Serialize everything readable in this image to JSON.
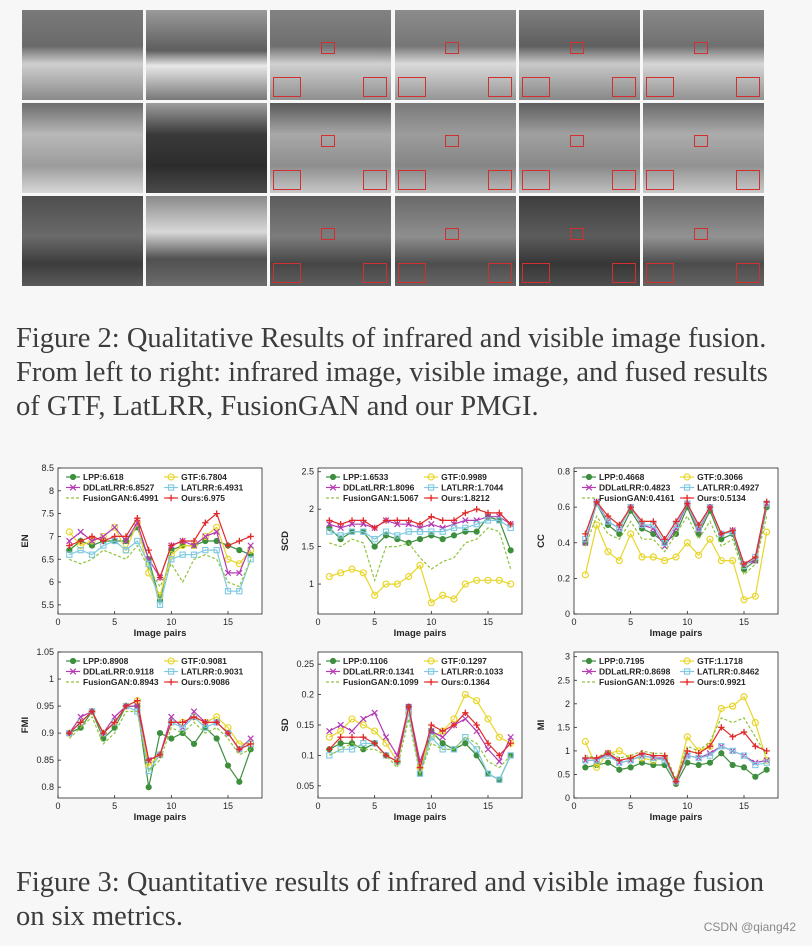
{
  "figure2": {
    "caption": "Figure 2: Qualitative Results of infrared and visible image fusion. From left to right: infrared image, visible image, and fused results of GTF, LatLRR, FusionGAN and our PMGI.",
    "rows": 3,
    "cols": 6
  },
  "figure3": {
    "caption": "Figure 3: Quantitative results of infrared and visible image fusion on six metrics."
  },
  "watermark": "CSDN @qiang42",
  "colors": {
    "LPP": "#3d8f3d",
    "GTF": "#e8d62a",
    "DDLatLRR": "#b43ab4",
    "LATLRR": "#7ec9e0",
    "FusionGAN": "#8fc43a",
    "Ours": "#e02a2a"
  },
  "chart_data": [
    {
      "type": "line",
      "ylabel": "EN",
      "xlabel": "Image pairs",
      "ylim": [
        5.3,
        8.5
      ],
      "yticks": [
        "5.5",
        "6",
        "6.5",
        "7",
        "7.5",
        "8",
        "8.5"
      ],
      "xticks": [
        "0",
        "5",
        "10",
        "15"
      ],
      "x": [
        1,
        2,
        3,
        4,
        5,
        6,
        7,
        8,
        9,
        10,
        11,
        12,
        13,
        14,
        15,
        16,
        17
      ],
      "legend": [
        "LPP:6.618",
        "GTF:6.7804",
        "DDLatLRR:6.8527",
        "LATLRR:6.4931",
        "FusionGAN:6.4991",
        "Ours:6.975"
      ],
      "series": [
        {
          "name": "LPP",
          "values": [
            6.7,
            6.9,
            6.8,
            6.9,
            6.9,
            6.9,
            7.2,
            6.5,
            5.6,
            6.7,
            6.8,
            6.8,
            6.9,
            6.9,
            6.8,
            6.7,
            6.6
          ]
        },
        {
          "name": "GTF",
          "values": [
            7.1,
            6.8,
            6.9,
            7.0,
            7.2,
            6.7,
            7.3,
            6.2,
            5.7,
            6.6,
            6.8,
            6.8,
            7.0,
            7.2,
            6.5,
            6.4,
            6.7
          ]
        },
        {
          "name": "DDLatLRR",
          "values": [
            6.9,
            7.1,
            6.9,
            7.0,
            7.2,
            6.9,
            7.3,
            6.5,
            6.1,
            6.8,
            6.9,
            6.8,
            7.0,
            7.1,
            6.2,
            6.2,
            6.8
          ]
        },
        {
          "name": "LATLRR",
          "values": [
            6.6,
            6.7,
            6.6,
            6.8,
            6.9,
            6.7,
            6.9,
            6.4,
            5.5,
            6.5,
            6.6,
            6.6,
            6.7,
            6.7,
            5.8,
            5.8,
            6.5
          ]
        },
        {
          "name": "FusionGAN",
          "values": [
            6.5,
            6.4,
            6.5,
            6.7,
            6.6,
            6.5,
            6.8,
            6.3,
            5.9,
            6.4,
            6.0,
            6.5,
            6.6,
            6.5,
            6.0,
            5.9,
            6.5
          ]
        },
        {
          "name": "Ours",
          "values": [
            6.8,
            6.9,
            7.0,
            6.9,
            7.0,
            7.0,
            7.4,
            6.7,
            6.1,
            6.8,
            6.9,
            6.9,
            7.3,
            7.5,
            6.8,
            6.9,
            7.0
          ]
        }
      ]
    },
    {
      "type": "line",
      "ylabel": "SCD",
      "xlabel": "Image pairs",
      "ylim": [
        0.6,
        2.55
      ],
      "yticks": [
        "1",
        "1.5",
        "2",
        "2.5"
      ],
      "xticks": [
        "0",
        "5",
        "10",
        "15"
      ],
      "x": [
        1,
        2,
        3,
        4,
        5,
        6,
        7,
        8,
        9,
        10,
        11,
        12,
        13,
        14,
        15,
        16,
        17
      ],
      "legend": [
        "LPP:1.6533",
        "GTF:0.9989",
        "DDLatLRR:1.8096",
        "LATLRR:1.7044",
        "FusionGAN:1.5067",
        "Ours:1.8212"
      ],
      "series": [
        {
          "name": "LPP",
          "values": [
            1.75,
            1.6,
            1.7,
            1.7,
            1.5,
            1.65,
            1.6,
            1.55,
            1.6,
            1.65,
            1.6,
            1.65,
            1.7,
            1.7,
            1.9,
            1.85,
            1.45
          ]
        },
        {
          "name": "GTF",
          "values": [
            1.1,
            1.15,
            1.2,
            1.15,
            0.85,
            1.0,
            1.0,
            1.1,
            1.25,
            0.75,
            0.85,
            0.8,
            1.0,
            1.05,
            1.05,
            1.05,
            1.0
          ]
        },
        {
          "name": "DDLatLRR",
          "values": [
            1.8,
            1.75,
            1.8,
            1.8,
            1.75,
            1.85,
            1.8,
            1.8,
            1.75,
            1.8,
            1.75,
            1.8,
            1.85,
            1.85,
            1.9,
            1.9,
            1.8
          ]
        },
        {
          "name": "LATLRR",
          "values": [
            1.7,
            1.65,
            1.7,
            1.7,
            1.6,
            1.7,
            1.65,
            1.7,
            1.7,
            1.7,
            1.7,
            1.75,
            1.75,
            1.8,
            1.85,
            1.85,
            1.75
          ]
        },
        {
          "name": "FusionGAN",
          "values": [
            1.55,
            1.5,
            1.6,
            1.55,
            1.05,
            1.5,
            1.5,
            1.55,
            1.35,
            1.2,
            1.3,
            1.35,
            1.55,
            1.6,
            1.75,
            1.7,
            1.2
          ]
        },
        {
          "name": "Ours",
          "values": [
            1.85,
            1.8,
            1.85,
            1.85,
            1.75,
            1.85,
            1.85,
            1.85,
            1.8,
            1.9,
            1.85,
            1.85,
            1.95,
            2.0,
            1.95,
            1.95,
            1.8
          ]
        }
      ]
    },
    {
      "type": "line",
      "ylabel": "CC",
      "xlabel": "Image pairs",
      "ylim": [
        0,
        0.82
      ],
      "yticks": [
        "0",
        "0.2",
        "0.4",
        "0.6",
        "0.8"
      ],
      "xticks": [
        "0",
        "5",
        "10",
        "15"
      ],
      "x": [
        1,
        2,
        3,
        4,
        5,
        6,
        7,
        8,
        9,
        10,
        11,
        12,
        13,
        14,
        15,
        16,
        17
      ],
      "legend": [
        "LPP:0.4668",
        "GTF:0.3066",
        "DDLatLRR:0.4823",
        "LATLRR:0.4927",
        "FusionGAN:0.4161",
        "Ours:0.5134"
      ],
      "series": [
        {
          "name": "LPP",
          "values": [
            0.4,
            0.62,
            0.5,
            0.45,
            0.58,
            0.48,
            0.45,
            0.4,
            0.45,
            0.6,
            0.45,
            0.58,
            0.42,
            0.45,
            0.25,
            0.3,
            0.6
          ]
        },
        {
          "name": "GTF",
          "values": [
            0.22,
            0.5,
            0.35,
            0.3,
            0.45,
            0.32,
            0.32,
            0.3,
            0.32,
            0.4,
            0.33,
            0.42,
            0.3,
            0.3,
            0.08,
            0.1,
            0.46
          ]
        },
        {
          "name": "DDLatLRR",
          "values": [
            0.4,
            0.63,
            0.52,
            0.48,
            0.6,
            0.5,
            0.48,
            0.38,
            0.48,
            0.62,
            0.47,
            0.6,
            0.45,
            0.47,
            0.28,
            0.3,
            0.62
          ]
        },
        {
          "name": "LATLRR",
          "values": [
            0.42,
            0.62,
            0.52,
            0.48,
            0.6,
            0.5,
            0.5,
            0.4,
            0.5,
            0.62,
            0.48,
            0.6,
            0.45,
            0.46,
            0.27,
            0.32,
            0.62
          ]
        },
        {
          "name": "FusionGAN",
          "values": [
            0.38,
            0.55,
            0.45,
            0.42,
            0.52,
            0.42,
            0.42,
            0.35,
            0.45,
            0.55,
            0.42,
            0.52,
            0.38,
            0.42,
            0.22,
            0.28,
            0.55
          ]
        },
        {
          "name": "Ours",
          "values": [
            0.45,
            0.63,
            0.55,
            0.5,
            0.6,
            0.52,
            0.52,
            0.42,
            0.52,
            0.62,
            0.5,
            0.6,
            0.45,
            0.47,
            0.28,
            0.32,
            0.63
          ]
        }
      ]
    },
    {
      "type": "line",
      "ylabel": "FMI",
      "xlabel": "Image pairs",
      "ylim": [
        0.78,
        1.05
      ],
      "yticks": [
        "0.8",
        "0.85",
        "0.9",
        "0.95",
        "1",
        "1.05"
      ],
      "xticks": [
        "0",
        "5",
        "10",
        "15"
      ],
      "x": [
        1,
        2,
        3,
        4,
        5,
        6,
        7,
        8,
        9,
        10,
        11,
        12,
        13,
        14,
        15,
        16,
        17
      ],
      "legend": [
        "LPP:0.8908",
        "GTF:0.9081",
        "DDLatLRR:0.9118",
        "LATLRR:0.9031",
        "FusionGAN:0.8943",
        "Ours:0.9086"
      ],
      "series": [
        {
          "name": "LPP",
          "values": [
            0.9,
            0.91,
            0.94,
            0.89,
            0.91,
            0.95,
            0.95,
            0.8,
            0.9,
            0.89,
            0.9,
            0.88,
            0.91,
            0.89,
            0.84,
            0.81,
            0.87
          ]
        },
        {
          "name": "GTF",
          "values": [
            0.9,
            0.92,
            0.94,
            0.9,
            0.92,
            0.95,
            0.96,
            0.84,
            0.86,
            0.92,
            0.92,
            0.93,
            0.92,
            0.93,
            0.91,
            0.88,
            0.88
          ]
        },
        {
          "name": "DDLatLRR",
          "values": [
            0.9,
            0.93,
            0.94,
            0.9,
            0.93,
            0.95,
            0.95,
            0.85,
            0.86,
            0.93,
            0.91,
            0.94,
            0.92,
            0.92,
            0.9,
            0.87,
            0.89
          ]
        },
        {
          "name": "LATLRR",
          "values": [
            0.9,
            0.92,
            0.94,
            0.9,
            0.92,
            0.95,
            0.94,
            0.83,
            0.86,
            0.92,
            0.91,
            0.93,
            0.91,
            0.92,
            0.9,
            0.87,
            0.88
          ]
        },
        {
          "name": "FusionGAN",
          "values": [
            0.89,
            0.91,
            0.93,
            0.88,
            0.9,
            0.94,
            0.94,
            0.83,
            0.85,
            0.91,
            0.9,
            0.92,
            0.9,
            0.91,
            0.89,
            0.86,
            0.87
          ]
        },
        {
          "name": "Ours",
          "values": [
            0.9,
            0.92,
            0.94,
            0.9,
            0.92,
            0.95,
            0.96,
            0.85,
            0.86,
            0.92,
            0.92,
            0.93,
            0.92,
            0.92,
            0.9,
            0.87,
            0.88
          ]
        }
      ]
    },
    {
      "type": "line",
      "ylabel": "SD",
      "xlabel": "Image pairs",
      "ylim": [
        0.03,
        0.27
      ],
      "yticks": [
        "0.05",
        "0.1",
        "0.15",
        "0.2",
        "0.25"
      ],
      "xticks": [
        "0",
        "5",
        "10",
        "15"
      ],
      "x": [
        1,
        2,
        3,
        4,
        5,
        6,
        7,
        8,
        9,
        10,
        11,
        12,
        13,
        14,
        15,
        16,
        17
      ],
      "legend": [
        "LPP:0.1106",
        "GTF:0.1297",
        "DDLatLRR:0.1341",
        "LATLRR:0.1033",
        "FusionGAN:0.1099",
        "Ours:0.1364"
      ],
      "series": [
        {
          "name": "LPP",
          "values": [
            0.11,
            0.12,
            0.12,
            0.11,
            0.12,
            0.1,
            0.09,
            0.18,
            0.07,
            0.14,
            0.12,
            0.11,
            0.12,
            0.1,
            0.07,
            0.06,
            0.1
          ]
        },
        {
          "name": "GTF",
          "values": [
            0.13,
            0.14,
            0.16,
            0.15,
            0.14,
            0.12,
            0.09,
            0.17,
            0.08,
            0.13,
            0.14,
            0.16,
            0.2,
            0.19,
            0.16,
            0.13,
            0.12
          ]
        },
        {
          "name": "DDLatLRR",
          "values": [
            0.14,
            0.15,
            0.14,
            0.16,
            0.17,
            0.13,
            0.1,
            0.18,
            0.09,
            0.14,
            0.13,
            0.15,
            0.16,
            0.14,
            0.11,
            0.09,
            0.13
          ]
        },
        {
          "name": "LATLRR",
          "values": [
            0.1,
            0.11,
            0.11,
            0.12,
            0.12,
            0.1,
            0.09,
            0.17,
            0.07,
            0.13,
            0.11,
            0.11,
            0.13,
            0.11,
            0.07,
            0.06,
            0.1
          ]
        },
        {
          "name": "FusionGAN",
          "values": [
            0.1,
            0.11,
            0.12,
            0.11,
            0.11,
            0.1,
            0.08,
            0.16,
            0.07,
            0.12,
            0.11,
            0.11,
            0.13,
            0.12,
            0.09,
            0.08,
            0.1
          ]
        },
        {
          "name": "Ours",
          "values": [
            0.11,
            0.13,
            0.13,
            0.13,
            0.12,
            0.1,
            0.09,
            0.18,
            0.08,
            0.15,
            0.14,
            0.15,
            0.17,
            0.15,
            0.12,
            0.1,
            0.12
          ]
        }
      ]
    },
    {
      "type": "line",
      "ylabel": "MI",
      "xlabel": "Image pairs",
      "ylim": [
        0,
        3.1
      ],
      "yticks": [
        "0",
        "0.5",
        "1",
        "1.5",
        "2",
        "2.5",
        "3"
      ],
      "xticks": [
        "0",
        "5",
        "10",
        "15"
      ],
      "x": [
        1,
        2,
        3,
        4,
        5,
        6,
        7,
        8,
        9,
        10,
        11,
        12,
        13,
        14,
        15,
        16,
        17
      ],
      "legend": [
        "LPP:0.7195",
        "GTF:1.1718",
        "DDLatLRR:0.8698",
        "LATLRR:0.8462",
        "FusionGAN:1.0926",
        "Ours:0.9921"
      ],
      "series": [
        {
          "name": "LPP",
          "values": [
            0.65,
            0.7,
            0.75,
            0.6,
            0.65,
            0.75,
            0.7,
            0.7,
            0.3,
            0.75,
            0.7,
            0.75,
            0.95,
            0.7,
            0.65,
            0.45,
            0.6
          ]
        },
        {
          "name": "GTF",
          "values": [
            1.2,
            0.65,
            0.95,
            1.0,
            0.85,
            0.85,
            0.8,
            0.85,
            0.35,
            1.3,
            1.0,
            1.1,
            1.9,
            1.95,
            2.15,
            1.6,
            0.8
          ]
        },
        {
          "name": "DDLatLRR",
          "values": [
            0.8,
            0.8,
            0.95,
            0.75,
            0.8,
            0.9,
            0.85,
            0.85,
            0.35,
            0.9,
            0.85,
            0.95,
            1.1,
            1.0,
            0.9,
            0.75,
            0.8
          ]
        },
        {
          "name": "LATLRR",
          "values": [
            0.8,
            0.8,
            0.9,
            0.75,
            0.8,
            0.9,
            0.85,
            0.8,
            0.35,
            0.9,
            0.85,
            0.9,
            1.1,
            1.0,
            0.9,
            0.7,
            0.75
          ]
        },
        {
          "name": "FusionGAN",
          "values": [
            0.9,
            0.85,
            1.0,
            0.85,
            0.9,
            1.0,
            0.95,
            0.95,
            0.4,
            1.1,
            1.0,
            1.2,
            1.7,
            1.6,
            1.7,
            1.3,
            0.9
          ]
        },
        {
          "name": "Ours",
          "values": [
            0.85,
            0.85,
            0.95,
            0.8,
            0.85,
            0.95,
            0.9,
            0.9,
            0.35,
            1.0,
            0.95,
            1.1,
            1.5,
            1.3,
            1.4,
            1.1,
            1.0
          ]
        }
      ]
    }
  ]
}
